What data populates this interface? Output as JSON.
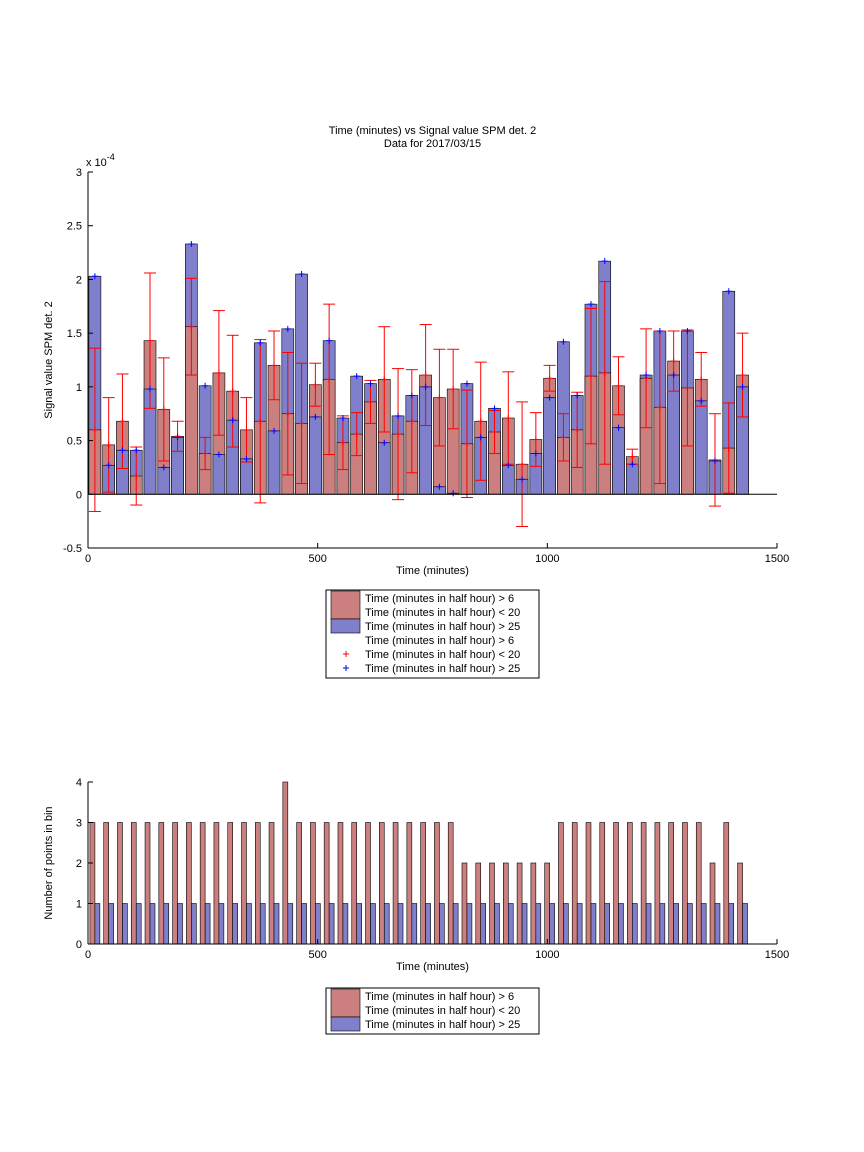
{
  "chart_data": [
    {
      "type": "bar",
      "barmode": "overlay",
      "title": "Time (minutes) vs Signal value SPM det. 2",
      "subtitle": "Data for 2017/03/15",
      "x_label": "Time (minutes)",
      "y_label": "Signal value SPM det. 2",
      "y_multiplier": {
        "base": "x 10",
        "exponent": "-4"
      },
      "x": [
        15,
        45,
        75,
        105,
        135,
        165,
        195,
        225,
        255,
        285,
        315,
        345,
        375,
        405,
        435,
        465,
        495,
        525,
        555,
        585,
        615,
        645,
        675,
        705,
        735,
        765,
        795,
        825,
        855,
        885,
        915,
        945,
        975,
        1005,
        1035,
        1065,
        1095,
        1125,
        1155,
        1185,
        1215,
        1245,
        1275,
        1305,
        1335,
        1365,
        1395,
        1425
      ],
      "xlim": [
        0,
        1500
      ],
      "xticks": [
        0,
        500,
        1000,
        1500
      ],
      "ylim": [
        -0.5,
        3
      ],
      "yticks": [
        -0.5,
        0,
        0.5,
        1,
        1.5,
        2,
        2.5,
        3
      ],
      "series": [
        {
          "color": "#cc7f7f",
          "errorbar_color": "#ff0000",
          "values": [
            0.6,
            0.46,
            0.68,
            0.17,
            1.43,
            0.79,
            0.54,
            1.56,
            0.38,
            1.13,
            0.96,
            0.6,
            0.68,
            1.2,
            0.75,
            0.66,
            1.02,
            1.07,
            0.48,
            0.56,
            0.86,
            1.07,
            0.56,
            0.68,
            1.11,
            0.9,
            0.98,
            0.47,
            0.68,
            0.58,
            0.71,
            0.28,
            0.51,
            1.08,
            0.53,
            0.6,
            1.1,
            1.13,
            1.01,
            0.35,
            1.08,
            0.81,
            1.24,
            0.99,
            1.07,
            0.32,
            0.43,
            1.11
          ],
          "errors": [
            0.76,
            0.44,
            0.44,
            0.27,
            0.63,
            0.48,
            0.14,
            0.45,
            0.15,
            0.58,
            0.52,
            0.3,
            0.76,
            0.32,
            0.57,
            0.56,
            0.2,
            0.7,
            0.25,
            0.2,
            0.2,
            0.49,
            0.61,
            0.48,
            0.47,
            0.45,
            0.37,
            0.5,
            0.55,
            0.2,
            0.43,
            0.58,
            0.25,
            0.12,
            0.22,
            0.35,
            0.63,
            0.85,
            0.27,
            0.07,
            0.46,
            0.71,
            0.28,
            0.54,
            0.25,
            0.43,
            0.42,
            0.39
          ]
        },
        {
          "color": "#7f7fcc",
          "marker_color": "#0000ff",
          "values": [
            2.03,
            0.27,
            0.41,
            0.41,
            0.98,
            0.25,
            0.53,
            2.33,
            1.01,
            0.37,
            0.69,
            0.33,
            1.41,
            0.59,
            1.54,
            2.05,
            0.72,
            1.43,
            0.71,
            1.1,
            1.03,
            0.48,
            0.73,
            0.92,
            1.0,
            0.07,
            0.01,
            1.03,
            0.53,
            0.8,
            0.27,
            0.14,
            0.38,
            0.9,
            1.42,
            0.92,
            1.77,
            2.17,
            0.62,
            0.28,
            1.11,
            1.52,
            1.11,
            1.52,
            0.87,
            0.31,
            1.89,
            1.0
          ]
        }
      ],
      "legend": [
        {
          "marker": "patch",
          "color": "#cc7f7f",
          "labels": [
            "Time (minutes in half hour) > 6",
            "Time (minutes in half hour) < 20"
          ]
        },
        {
          "marker": "patch",
          "color": "#7f7fcc",
          "labels": [
            "Time (minutes in half hour) > 25"
          ]
        },
        {
          "marker": "none",
          "labels": [
            "Time (minutes in half hour) > 6"
          ]
        },
        {
          "marker": "+",
          "color": "#ff0000",
          "labels": [
            "Time (minutes in half hour) < 20"
          ]
        },
        {
          "marker": "+",
          "color": "#0000ff",
          "labels": [
            "Time (minutes in half hour) > 25"
          ]
        }
      ]
    },
    {
      "type": "bar",
      "barmode": "grouped",
      "x_label": "Time (minutes)",
      "y_label": "Number of points in bin",
      "x": [
        15,
        45,
        75,
        105,
        135,
        165,
        195,
        225,
        255,
        285,
        315,
        345,
        375,
        405,
        435,
        465,
        495,
        525,
        555,
        585,
        615,
        645,
        675,
        705,
        735,
        765,
        795,
        825,
        855,
        885,
        915,
        945,
        975,
        1005,
        1035,
        1065,
        1095,
        1125,
        1155,
        1185,
        1215,
        1245,
        1275,
        1305,
        1335,
        1365,
        1395,
        1425
      ],
      "xlim": [
        0,
        1500
      ],
      "xticks": [
        0,
        500,
        1000,
        1500
      ],
      "ylim": [
        0,
        4
      ],
      "yticks": [
        0,
        1,
        2,
        3,
        4
      ],
      "series": [
        {
          "color": "#cc7f7f",
          "values": [
            3,
            3,
            3,
            3,
            3,
            3,
            3,
            3,
            3,
            3,
            3,
            3,
            3,
            3,
            4,
            3,
            3,
            3,
            3,
            3,
            3,
            3,
            3,
            3,
            3,
            3,
            3,
            2,
            2,
            2,
            2,
            2,
            2,
            2,
            3,
            3,
            3,
            3,
            3,
            3,
            3,
            3,
            3,
            3,
            3,
            2,
            3,
            2
          ]
        },
        {
          "color": "#7f7fcc",
          "values": [
            1,
            1,
            1,
            1,
            1,
            1,
            1,
            1,
            1,
            1,
            1,
            1,
            1,
            1,
            1,
            1,
            1,
            1,
            1,
            1,
            1,
            1,
            1,
            1,
            1,
            1,
            1,
            1,
            1,
            1,
            1,
            1,
            1,
            1,
            1,
            1,
            1,
            1,
            1,
            1,
            1,
            1,
            1,
            1,
            1,
            1,
            1,
            1
          ]
        }
      ],
      "legend": [
        {
          "marker": "patch",
          "color": "#cc7f7f",
          "labels": [
            "Time (minutes in half hour) > 6",
            "Time (minutes in half hour) < 20"
          ]
        },
        {
          "marker": "patch",
          "color": "#7f7fcc",
          "labels": [
            "Time (minutes in half hour) > 25"
          ]
        }
      ]
    }
  ]
}
